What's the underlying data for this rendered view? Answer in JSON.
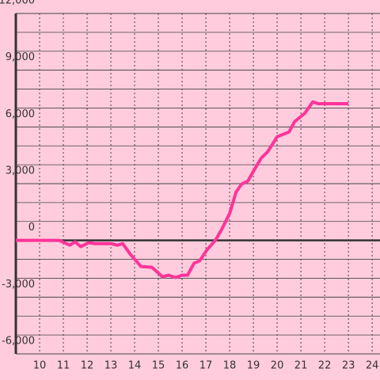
{
  "chart_data": {
    "type": "line",
    "x": [
      9,
      10,
      10.5,
      10.83,
      11.27,
      11.5,
      11.73,
      12.07,
      12.33,
      13,
      13.27,
      13.5,
      13.83,
      14.27,
      14.73,
      15.17,
      15.43,
      15.73,
      16,
      16.23,
      16.5,
      16.73,
      17.07,
      17.4,
      17.67,
      18,
      18.27,
      18.5,
      18.77,
      19.07,
      19.33,
      19.6,
      20,
      20.5,
      20.73,
      21.17,
      21.5,
      21.73,
      23
    ],
    "values": [
      0,
      0,
      0,
      0,
      -250,
      -80,
      -330,
      -120,
      -170,
      -170,
      -250,
      -170,
      -750,
      -1380,
      -1420,
      -1920,
      -1840,
      -1960,
      -1840,
      -1840,
      -1210,
      -1090,
      -460,
      0,
      590,
      1420,
      2550,
      2970,
      3140,
      3800,
      4350,
      4680,
      5480,
      5730,
      6270,
      6730,
      7320,
      7230,
      7230
    ],
    "color": "#ff3399",
    "xlim": [
      9,
      24.33
    ],
    "xticks": [
      10,
      11,
      12,
      13,
      14,
      15,
      16,
      17,
      18,
      19,
      20,
      21,
      22,
      23,
      24
    ],
    "ylim": [
      -6000,
      12000
    ],
    "yticks": [
      {
        "value": -6000,
        "label": "-6,000"
      },
      {
        "value": -3000,
        "label": "-3,000"
      },
      0,
      {
        "value": 3000,
        "label": "3,000"
      },
      {
        "value": 6000,
        "label": "6,000"
      },
      {
        "value": 9000,
        "label": "9,000"
      },
      {
        "value": 12000,
        "label": "12,000"
      }
    ],
    "minor_yticks": [
      -5000,
      -4000,
      -2000,
      -1000,
      1000,
      2000,
      4000,
      5000,
      7000,
      8000,
      10000,
      11000
    ],
    "grid": true
  }
}
